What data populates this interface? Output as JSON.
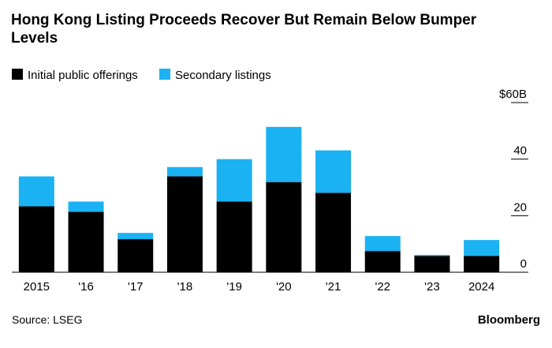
{
  "chart_data": {
    "type": "stacked_bar",
    "title": "Hong Kong Listing Proceeds Recover But Remain Below Bumper Levels",
    "categories": [
      "2015",
      "'16",
      "'17",
      "'18",
      "'19",
      "'20",
      "'21",
      "'22",
      "'23",
      "2024"
    ],
    "series": [
      {
        "name": "Initial public offerings",
        "color": "#000000",
        "values": [
          23.3,
          21.4,
          11.7,
          33.9,
          25.0,
          31.9,
          28.1,
          7.5,
          5.8,
          5.8
        ]
      },
      {
        "name": "Secondary listings",
        "color": "#1ab2f2",
        "values": [
          10.6,
          3.6,
          2.2,
          3.3,
          15.0,
          19.5,
          15.0,
          5.3,
          0.3,
          5.6
        ]
      }
    ],
    "ylim": [
      0,
      60
    ],
    "yticks": [
      0,
      20,
      40,
      {
        "value": 60,
        "label": "$60B"
      }
    ],
    "source": "Source: LSEG",
    "brand": "Bloomberg"
  }
}
